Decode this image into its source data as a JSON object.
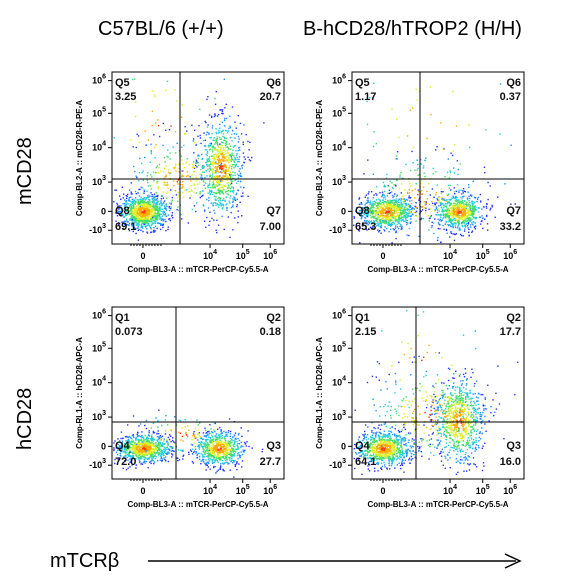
{
  "column_titles": [
    "C57BL/6 (+/+)",
    "B-hCD28/hTROP2 (H/H)"
  ],
  "row_titles": [
    "mCD28",
    "hCD28"
  ],
  "bottom_axis_label": "mTCRβ",
  "chart_data": [
    {
      "type": "scatter",
      "subtype": "flow-cytometry-density",
      "strain": "C57BL/6 (+/+)",
      "marker": "mCD28",
      "xlabel": "Comp-BL3-A :: mTCR-PerCP-Cy5.5-A",
      "ylabel": "Comp-BL2-A :: mCD28-R-PE-A",
      "x_ticks": [
        "0",
        "10^4",
        "10^5",
        "10^6"
      ],
      "y_ticks": [
        "-10^3",
        "0",
        "10^3",
        "10^4",
        "10^5",
        "10^6"
      ],
      "quadrants": [
        {
          "name": "Q5",
          "value": "3.25",
          "pos": "upper-left"
        },
        {
          "name": "Q6",
          "value": "20.7",
          "pos": "upper-right"
        },
        {
          "name": "Q7",
          "value": "7.00",
          "pos": "lower-right"
        },
        {
          "name": "Q8",
          "value": "69.1",
          "pos": "lower-left"
        }
      ]
    },
    {
      "type": "scatter",
      "subtype": "flow-cytometry-density",
      "strain": "B-hCD28/hTROP2 (H/H)",
      "marker": "mCD28",
      "xlabel": "Comp-BL3-A :: mTCR-PerCP-Cy5.5-A",
      "ylabel": "Comp-BL2-A :: mCD28-R-PE-A",
      "x_ticks": [
        "0",
        "10^4",
        "10^5",
        "10^6"
      ],
      "y_ticks": [
        "-10^3",
        "0",
        "10^3",
        "10^4",
        "10^5",
        "10^6"
      ],
      "quadrants": [
        {
          "name": "Q5",
          "value": "1.17",
          "pos": "upper-left"
        },
        {
          "name": "Q6",
          "value": "0.37",
          "pos": "upper-right"
        },
        {
          "name": "Q7",
          "value": "33.2",
          "pos": "lower-right"
        },
        {
          "name": "Q8",
          "value": "65.3",
          "pos": "lower-left"
        }
      ]
    },
    {
      "type": "scatter",
      "subtype": "flow-cytometry-density",
      "strain": "C57BL/6 (+/+)",
      "marker": "hCD28",
      "xlabel": "Comp-BL3-A :: mTCR-PerCP-Cy5.5-A",
      "ylabel": "Comp-RL1-A :: hCD28-APC-A",
      "x_ticks": [
        "0",
        "10^4",
        "10^5",
        "10^6"
      ],
      "y_ticks": [
        "-10^3",
        "0",
        "10^3",
        "10^4",
        "10^5",
        "10^6"
      ],
      "quadrants": [
        {
          "name": "Q1",
          "value": "0.073",
          "pos": "upper-left"
        },
        {
          "name": "Q2",
          "value": "0.18",
          "pos": "upper-right"
        },
        {
          "name": "Q3",
          "value": "27.7",
          "pos": "lower-right"
        },
        {
          "name": "Q4",
          "value": "72.0",
          "pos": "lower-left"
        }
      ]
    },
    {
      "type": "scatter",
      "subtype": "flow-cytometry-density",
      "strain": "B-hCD28/hTROP2 (H/H)",
      "marker": "hCD28",
      "xlabel": "Comp-BL3-A :: mTCR-PerCP-Cy5.5-A",
      "ylabel": "Comp-RL1-A :: hCD28-APC-A",
      "x_ticks": [
        "0",
        "10^4",
        "10^5",
        "10^6"
      ],
      "y_ticks": [
        "-10^3",
        "0",
        "10^3",
        "10^4",
        "10^5",
        "10^6"
      ],
      "quadrants": [
        {
          "name": "Q1",
          "value": "2.15",
          "pos": "upper-left"
        },
        {
          "name": "Q2",
          "value": "17.7",
          "pos": "upper-right"
        },
        {
          "name": "Q3",
          "value": "16.0",
          "pos": "lower-right"
        },
        {
          "name": "Q4",
          "value": "64.1",
          "pos": "lower-left"
        }
      ]
    }
  ]
}
